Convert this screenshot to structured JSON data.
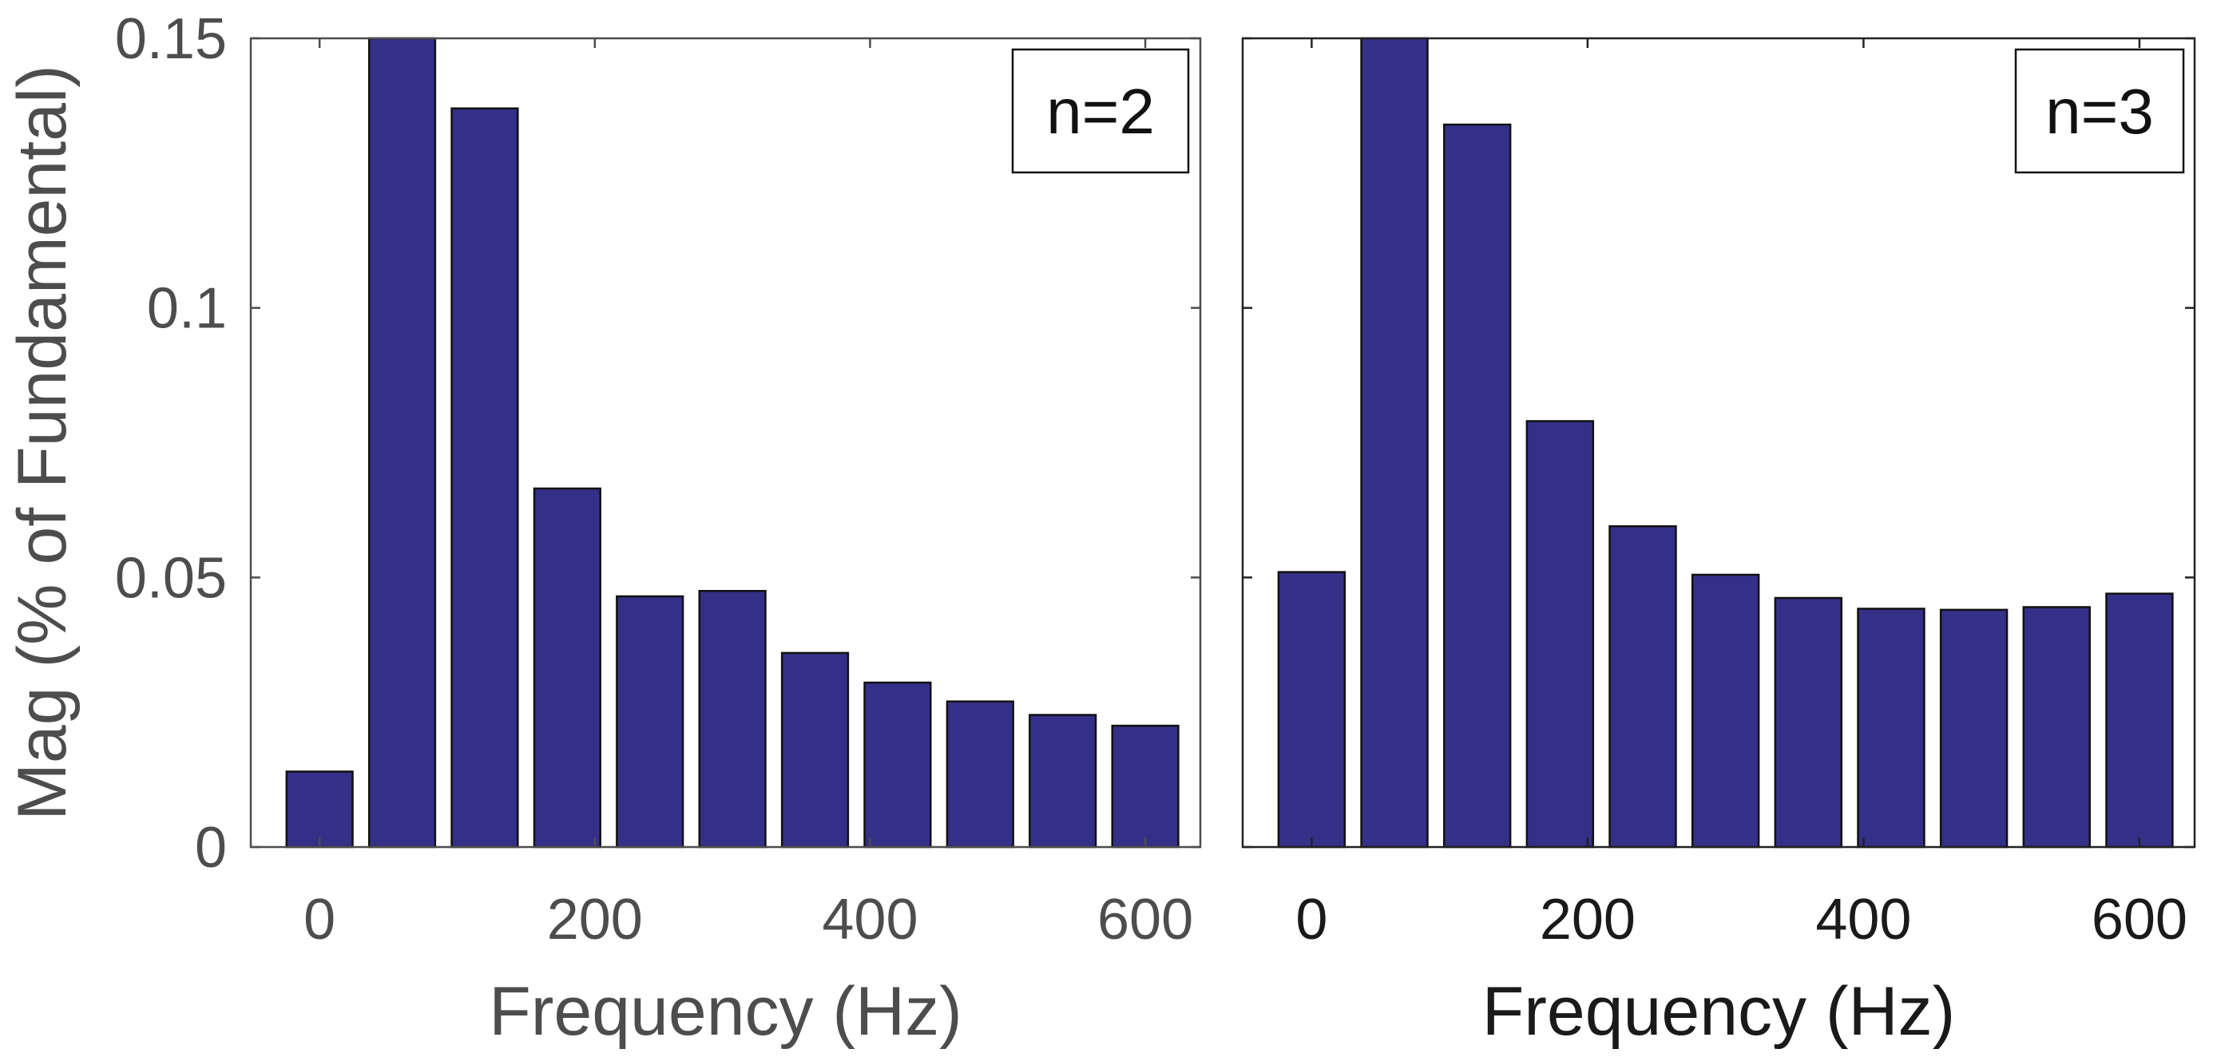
{
  "chart_data": [
    {
      "type": "bar",
      "label": "n=2",
      "xlabel": "Frequency (Hz)",
      "ylabel": "Mag (% of Fundamental)",
      "x": [
        0,
        60,
        120,
        180,
        240,
        300,
        360,
        420,
        480,
        540,
        600
      ],
      "values": [
        0.014,
        0.15,
        0.137,
        0.0665,
        0.0465,
        0.0475,
        0.036,
        0.0305,
        0.027,
        0.0245,
        0.0225
      ],
      "xlim": [
        -50,
        640
      ],
      "ylim": [
        0,
        0.15
      ],
      "xticks": [
        "0",
        "200",
        "400",
        "600"
      ],
      "xtick_values": [
        0,
        200,
        400,
        600
      ],
      "yticks": [
        "0",
        "0.05",
        "0.1",
        "0.15"
      ],
      "ytick_values": [
        0,
        0.05,
        0.1,
        0.15
      ],
      "legend_position": "top-right",
      "grid": false
    },
    {
      "type": "bar",
      "label": "n=3",
      "xlabel": "Frequency (Hz)",
      "x": [
        0,
        60,
        120,
        180,
        240,
        300,
        360,
        420,
        480,
        540,
        600
      ],
      "values": [
        0.051,
        0.15,
        0.134,
        0.079,
        0.0595,
        0.0505,
        0.0462,
        0.0442,
        0.044,
        0.0445,
        0.047
      ],
      "xlim": [
        -50,
        640
      ],
      "ylim": [
        0,
        0.15
      ],
      "xticks": [
        "0",
        "200",
        "400",
        "600"
      ],
      "xtick_values": [
        0,
        200,
        400,
        600
      ],
      "legend_position": "top-right",
      "grid": false
    }
  ],
  "colors": {
    "bar_fill": "#343088",
    "bar_edge": "#111111",
    "axis_left": "#4d4d4d",
    "axis_right": "#222222",
    "text_left": "#4d4d4d",
    "text_right": "#1a1a1a"
  }
}
